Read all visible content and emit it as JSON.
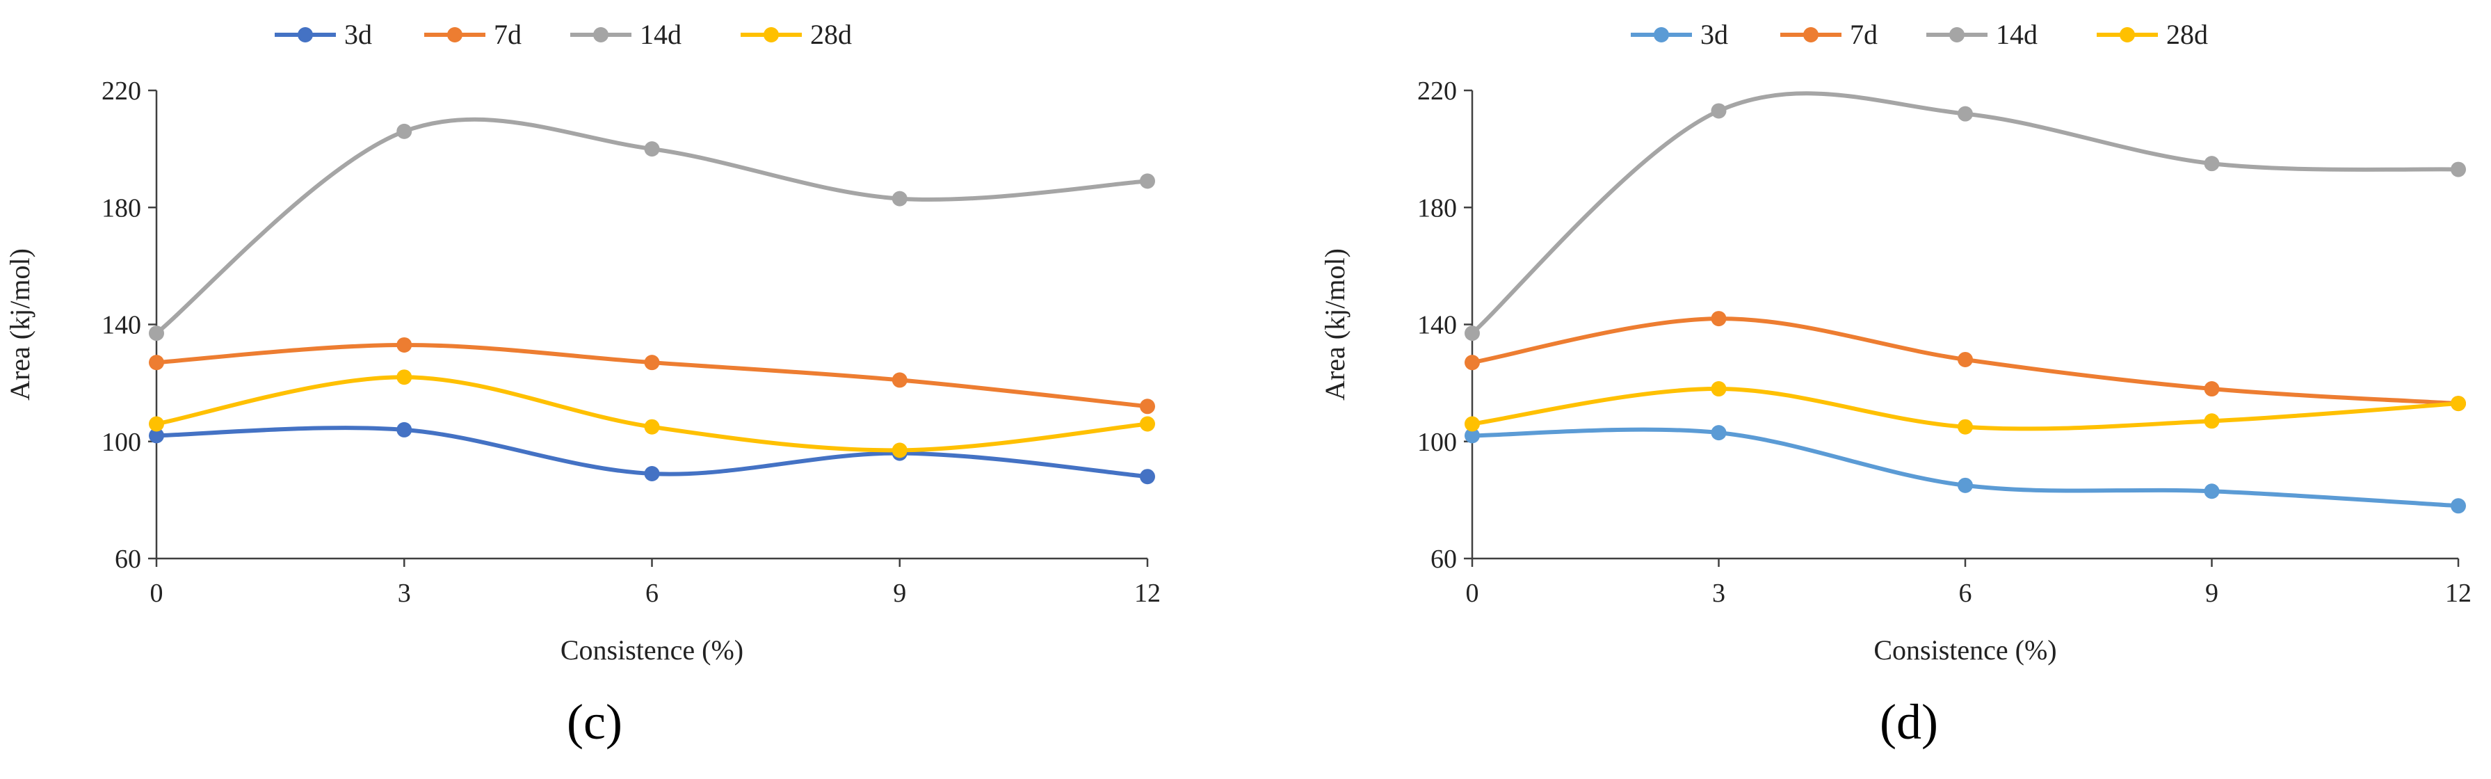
{
  "chart_data": [
    {
      "type": "line",
      "caption": "(c)",
      "xlabel": "Consistence (%)",
      "ylabel": "Area (kj/mol)",
      "x": [
        0,
        3,
        6,
        9,
        12
      ],
      "xlim": [
        0,
        12
      ],
      "ylim": [
        60,
        220
      ],
      "yticks": [
        60,
        100,
        140,
        180,
        220
      ],
      "smooth": true,
      "series": [
        {
          "name": "3d",
          "color": "#4472C4",
          "values": [
            102,
            104,
            89,
            96,
            88
          ]
        },
        {
          "name": "7d",
          "color": "#ED7D31",
          "values": [
            127,
            133,
            127,
            121,
            112
          ]
        },
        {
          "name": "14d",
          "color": "#A5A5A5",
          "values": [
            137,
            206,
            200,
            183,
            189
          ]
        },
        {
          "name": "28d",
          "color": "#FFC000",
          "values": [
            106,
            122,
            105,
            97,
            106
          ]
        }
      ]
    },
    {
      "type": "line",
      "caption": "(d)",
      "xlabel": "Consistence (%)",
      "ylabel": "Area (kj/mol)",
      "x": [
        0,
        3,
        6,
        9,
        12
      ],
      "xlim": [
        0,
        12
      ],
      "ylim": [
        60,
        220
      ],
      "yticks": [
        60,
        100,
        140,
        180,
        220
      ],
      "smooth": true,
      "series": [
        {
          "name": "3d",
          "color": "#5B9BD5",
          "values": [
            102,
            103,
            85,
            83,
            78
          ]
        },
        {
          "name": "7d",
          "color": "#ED7D31",
          "values": [
            127,
            142,
            128,
            118,
            113
          ]
        },
        {
          "name": "14d",
          "color": "#A5A5A5",
          "values": [
            137,
            213,
            212,
            195,
            193
          ]
        },
        {
          "name": "28d",
          "color": "#FFC000",
          "values": [
            106,
            118,
            105,
            107,
            113
          ]
        }
      ]
    }
  ]
}
